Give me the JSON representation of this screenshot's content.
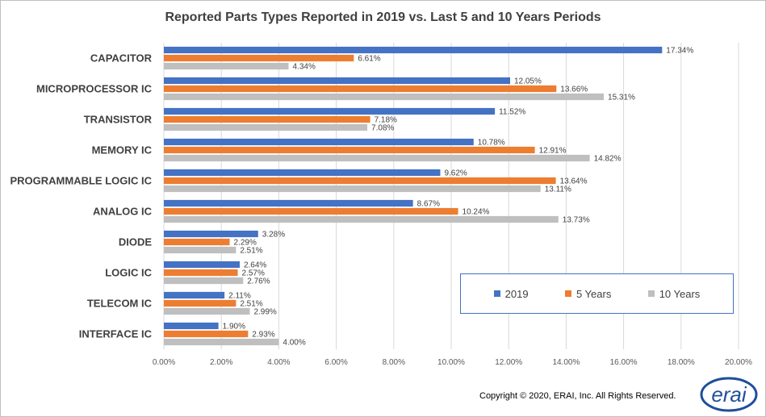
{
  "chart_data": {
    "type": "bar",
    "orientation": "horizontal",
    "title": "Reported Parts Types Reported in 2019 vs. Last 5 and 10 Years Periods",
    "categories": [
      "CAPACITOR",
      "MICROPROCESSOR IC",
      "TRANSISTOR",
      "MEMORY IC",
      "PROGRAMMABLE LOGIC IC",
      "ANALOG IC",
      "DIODE",
      "LOGIC IC",
      "TELECOM IC",
      "INTERFACE IC"
    ],
    "series": [
      {
        "name": "2019",
        "color": "#4472c4",
        "values": [
          17.34,
          12.05,
          11.52,
          10.78,
          9.62,
          8.67,
          3.28,
          2.64,
          2.11,
          1.9
        ],
        "labels": [
          "17.34%",
          "12.05%",
          "11.52%",
          "10.78%",
          "9.62%",
          "8.67%",
          "3.28%",
          "2.64%",
          "2.11%",
          "1.90%"
        ]
      },
      {
        "name": "5 Years",
        "color": "#ed7d31",
        "values": [
          6.61,
          13.66,
          7.18,
          12.91,
          13.64,
          10.24,
          2.29,
          2.57,
          2.51,
          2.93
        ],
        "labels": [
          "6.61%",
          "13.66%",
          "7.18%",
          "12.91%",
          "13.64%",
          "10.24%",
          "2.29%",
          "2.57%",
          "2.51%",
          "2.93%"
        ]
      },
      {
        "name": "10 Years",
        "color": "#bfbfbf",
        "values": [
          4.34,
          15.31,
          7.08,
          14.82,
          13.11,
          13.73,
          2.51,
          2.76,
          2.99,
          4.0
        ],
        "labels": [
          "4.34%",
          "15.31%",
          "7.08%",
          "14.82%",
          "13.11%",
          "13.73%",
          "2.51%",
          "2.76%",
          "2.99%",
          "4.00%"
        ]
      }
    ],
    "xlim": [
      0,
      20
    ],
    "xticks": [
      0,
      2,
      4,
      6,
      8,
      10,
      12,
      14,
      16,
      18,
      20
    ],
    "xtick_labels": [
      "0.00%",
      "2.00%",
      "4.00%",
      "6.00%",
      "8.00%",
      "10.00%",
      "12.00%",
      "14.00%",
      "16.00%",
      "18.00%",
      "20.00%"
    ],
    "grid": true,
    "legend_position": "lower-right"
  },
  "footer": {
    "copyright": "Copyright © 2020, ERAI, Inc.  All Rights Reserved.",
    "logo_text": "erai"
  }
}
